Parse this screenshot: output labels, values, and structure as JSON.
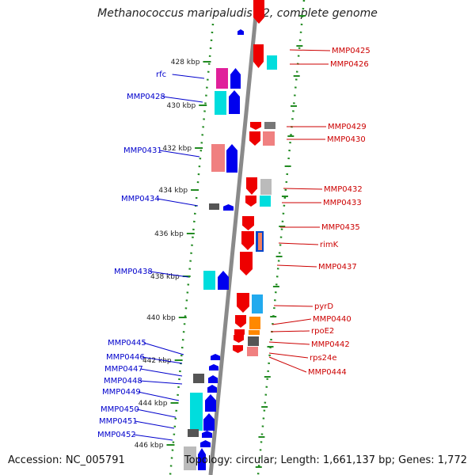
{
  "title": "Methanococcus maripaludis S2, complete genome",
  "footer": {
    "accession": "Accession: NC_005791",
    "summary": "Topology: circular; Length: 1,661,137 bp; Genes: 1,772"
  },
  "colors": {
    "left_label": "#0000cc",
    "right_label": "#cc0000",
    "backbone": "#8a8a8a",
    "tick": "#228b22",
    "kbp_tick": "#228b22"
  },
  "kbp_ticks": [
    {
      "label": "428 kbp"
    },
    {
      "label": "430 kbp"
    },
    {
      "label": "432 kbp"
    },
    {
      "label": "434 kbp"
    },
    {
      "label": "436 kbp"
    },
    {
      "label": "438 kbp"
    },
    {
      "label": "440 kbp"
    },
    {
      "label": "442 kbp"
    },
    {
      "label": "444 kbp"
    },
    {
      "label": "446 kbp"
    }
  ],
  "left_labels": [
    {
      "text": "rfc"
    },
    {
      "text": "MMP0428"
    },
    {
      "text": "MMP0431"
    },
    {
      "text": "MMP0434"
    },
    {
      "text": "MMP0438"
    },
    {
      "text": "MMP0445"
    },
    {
      "text": "MMP0446"
    },
    {
      "text": "MMP0447"
    },
    {
      "text": "MMP0448"
    },
    {
      "text": "MMP0449"
    },
    {
      "text": "MMP0450"
    },
    {
      "text": "MMP0451"
    },
    {
      "text": "MMP0452"
    }
  ],
  "right_labels": [
    {
      "text": "MMP0425"
    },
    {
      "text": "MMP0426"
    },
    {
      "text": "MMP0429"
    },
    {
      "text": "MMP0430"
    },
    {
      "text": "MMP0432"
    },
    {
      "text": "MMP0433"
    },
    {
      "text": "MMP0435"
    },
    {
      "text": "rimK"
    },
    {
      "text": "MMP0437"
    },
    {
      "text": "pyrD"
    },
    {
      "text": "MMP0440"
    },
    {
      "text": "rpoE2"
    },
    {
      "text": "MMP0442"
    },
    {
      "text": "rps24e"
    },
    {
      "text": "MMP0444"
    }
  ]
}
